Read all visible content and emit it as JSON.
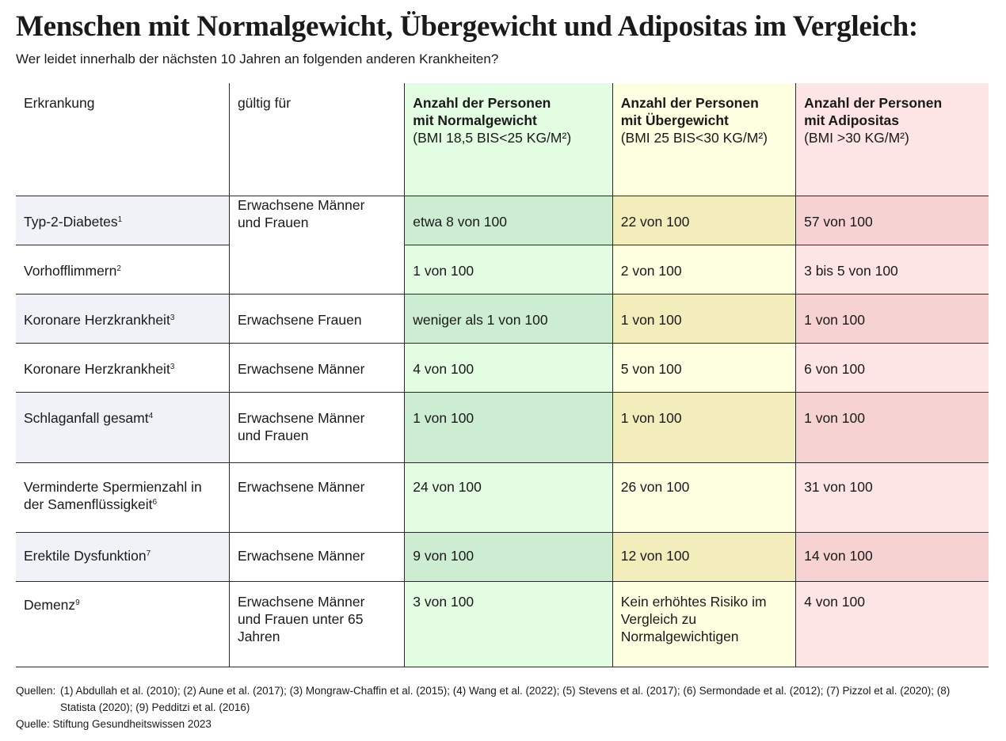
{
  "title": "Menschen mit Normalgewicht, Übergewicht und Adipositas im Vergleich:",
  "subtitle": "Wer leidet innerhalb der nächsten 10 Jahren an folgenden anderen Krankheiten?",
  "colors": {
    "normal": "#e3fde3",
    "normal_shaded": "#cdedd3",
    "overweight": "#fefee0",
    "overweight_shaded": "#f3ecbb",
    "obese": "#fee5e5",
    "obese_shaded": "#f6d2d2",
    "disease_shaded": "#f0f2f7"
  },
  "header": {
    "disease": "Erkrankung",
    "valid": "gültig für",
    "normal": {
      "label": "Anzahl der Personen mit Normalgewicht",
      "bmi": "(BMI 18,5 BIS<25 KG/M²)"
    },
    "overweight": {
      "label": "Anzahl der Personen mit Übergewicht",
      "bmi": "(BMI 25 BIS<30 KG/M²)"
    },
    "obese": {
      "label": "Anzahl der Personen mit Adipositas",
      "bmi": "(BMI >30 KG/M²)"
    }
  },
  "rows": [
    {
      "disease": "Typ-2-Diabetes",
      "ref": "1",
      "valid": "Erwachsene Männer und Frauen",
      "normal": "etwa 8 von 100",
      "overweight": "22 von 100",
      "obese": "57 von 100"
    },
    {
      "disease": "Vorhofflimmern",
      "ref": "2",
      "valid": "",
      "normal": "1 von 100",
      "overweight": "2 von 100",
      "obese": "3 bis 5 von 100"
    },
    {
      "disease": "Koronare Herzkrankheit",
      "ref": "3",
      "valid": "Erwachsene Frauen",
      "normal": "weniger als 1 von 100",
      "overweight": "1 von 100",
      "obese": "1 von 100"
    },
    {
      "disease": "Koronare Herzkrankheit",
      "ref": "3",
      "valid": "Erwachsene Männer",
      "normal": "4 von 100",
      "overweight": "5 von 100",
      "obese": "6 von 100"
    },
    {
      "disease": "Schlaganfall gesamt",
      "ref": "4",
      "valid": "Erwachsene Männer und Frauen",
      "normal": "1 von 100",
      "overweight": "1 von 100",
      "obese": "1 von 100"
    },
    {
      "disease": "Verminderte Spermienzahl in der Samenflüssigkeit",
      "ref": "6",
      "valid": "Erwachsene Männer",
      "normal": "24 von 100",
      "overweight": "26 von 100",
      "obese": "31 von 100"
    },
    {
      "disease": "Erektile Dysfunktion",
      "ref": "7",
      "valid": "Erwachsene Männer",
      "normal": "9 von 100",
      "overweight": "12 von 100",
      "obese": "14 von 100"
    },
    {
      "disease": "Demenz",
      "ref": "9",
      "valid": "Erwachsene Männer und Frauen unter 65 Jahren",
      "normal": "3 von 100",
      "overweight": "Kein erhöhtes Risiko im Vergleich zu Normalgewichtigen",
      "obese": "4 von 100"
    }
  ],
  "footer": {
    "sources_label": "Quellen:",
    "sources_text": "(1) Abdullah et al. (2010); (2) Aune et al. (2017); (3) Mongraw-Chaffin et al. (2015); (4) Wang et al. (2022); (5) Stevens et al. (2017); (6) Sermondade et al. (2012); (7) Pizzol et al. (2020); (8) Statista (2020); (9) Pedditzi et al. (2016)",
    "source": "Quelle: Stiftung Gesundheitswissen 2023"
  }
}
